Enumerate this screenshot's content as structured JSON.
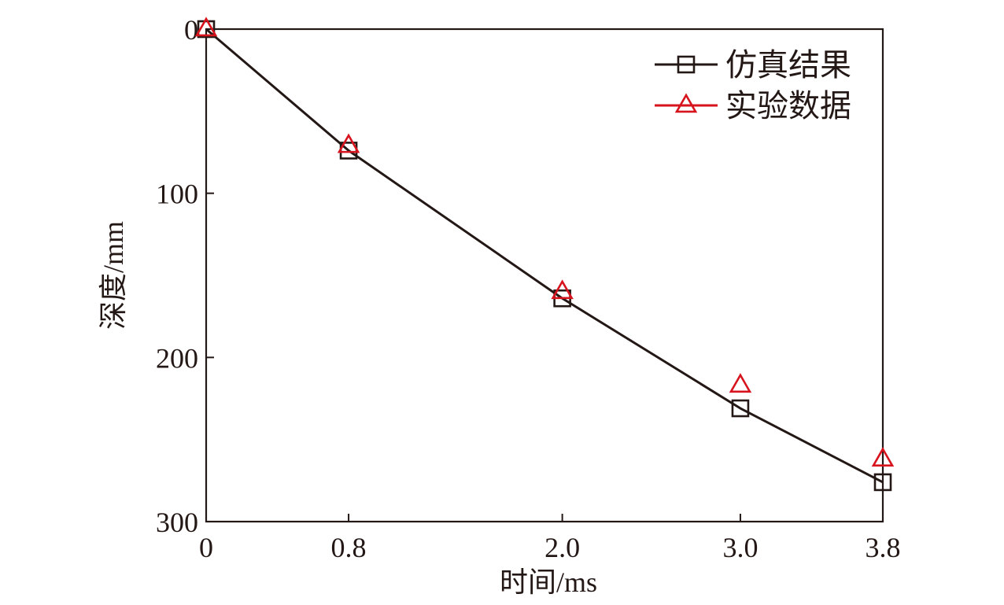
{
  "chart_data": {
    "type": "line",
    "title": "",
    "xlabel": "时间/ms",
    "ylabel": "深度/mm",
    "xlim": [
      0,
      3.8
    ],
    "ylim": [
      0,
      300
    ],
    "y_inverted": true,
    "x_ticks": [
      {
        "value": 0,
        "label": "0"
      },
      {
        "value": 0.8,
        "label": "0.8"
      },
      {
        "value": 2.0,
        "label": "2.0"
      },
      {
        "value": 3.0,
        "label": "3.0"
      },
      {
        "value": 3.8,
        "label": "3.8"
      }
    ],
    "y_ticks": [
      {
        "value": 0,
        "label": "0"
      },
      {
        "value": 100,
        "label": "100"
      },
      {
        "value": 200,
        "label": "200"
      },
      {
        "value": 300,
        "label": "300"
      }
    ],
    "grid": false,
    "legend_position": "top-right",
    "series": [
      {
        "name": "仿真结果",
        "color": "#231815",
        "marker": "square",
        "line": true,
        "x": [
          0,
          0.8,
          2.0,
          3.0,
          3.8
        ],
        "y": [
          0,
          74,
          164,
          231,
          276
        ]
      },
      {
        "name": "实验数据",
        "color": "#d7141e",
        "marker": "triangle",
        "line": false,
        "x": [
          0,
          0.8,
          2.0,
          3.0,
          3.8
        ],
        "y": [
          0,
          71,
          160,
          217,
          262
        ]
      }
    ]
  }
}
